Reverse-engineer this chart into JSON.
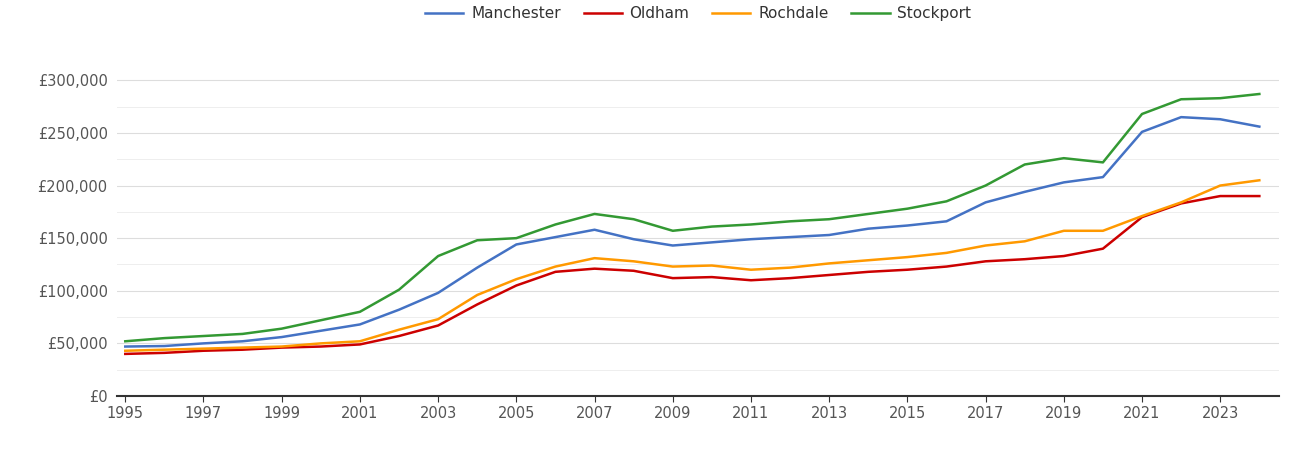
{
  "years": [
    1995,
    1996,
    1997,
    1998,
    1999,
    2000,
    2001,
    2002,
    2003,
    2004,
    2005,
    2006,
    2007,
    2008,
    2009,
    2010,
    2011,
    2012,
    2013,
    2014,
    2015,
    2016,
    2017,
    2018,
    2019,
    2020,
    2021,
    2022,
    2023,
    2024
  ],
  "manchester": [
    47000,
    47500,
    50000,
    52000,
    56000,
    62000,
    68000,
    82000,
    98000,
    122000,
    144000,
    151000,
    158000,
    149000,
    143000,
    146000,
    149000,
    151000,
    153000,
    159000,
    162000,
    166000,
    184000,
    194000,
    203000,
    208000,
    251000,
    265000,
    263000,
    256000
  ],
  "oldham": [
    40000,
    41000,
    43000,
    44000,
    46000,
    47000,
    49000,
    57000,
    67000,
    87000,
    105000,
    118000,
    121000,
    119000,
    112000,
    113000,
    110000,
    112000,
    115000,
    118000,
    120000,
    123000,
    128000,
    130000,
    133000,
    140000,
    170000,
    183000,
    190000,
    190000
  ],
  "rochdale": [
    43000,
    44000,
    45000,
    46000,
    47000,
    50000,
    52000,
    63000,
    73000,
    96000,
    111000,
    123000,
    131000,
    128000,
    123000,
    124000,
    120000,
    122000,
    126000,
    129000,
    132000,
    136000,
    143000,
    147000,
    157000,
    157000,
    171000,
    184000,
    200000,
    205000
  ],
  "stockport": [
    52000,
    55000,
    57000,
    59000,
    64000,
    72000,
    80000,
    101000,
    133000,
    148000,
    150000,
    163000,
    173000,
    168000,
    157000,
    161000,
    163000,
    166000,
    168000,
    173000,
    178000,
    185000,
    200000,
    220000,
    226000,
    222000,
    268000,
    282000,
    283000,
    287000
  ],
  "colors": {
    "manchester": "#4472C4",
    "oldham": "#CC0000",
    "rochdale": "#FF9900",
    "stockport": "#339933"
  },
  "ylim": [
    0,
    325000
  ],
  "yticks_major": [
    0,
    50000,
    100000,
    150000,
    200000,
    250000,
    300000
  ],
  "yticks_minor": [
    25000,
    75000,
    125000,
    175000,
    225000,
    275000
  ],
  "ytick_labels": [
    "£0",
    "£50,000",
    "£100,000",
    "£150,000",
    "£200,000",
    "£250,000",
    "£300,000"
  ],
  "xtick_labels": [
    "1995",
    "1997",
    "1999",
    "2001",
    "2003",
    "2005",
    "2007",
    "2009",
    "2011",
    "2013",
    "2015",
    "2017",
    "2019",
    "2021",
    "2023"
  ],
  "background_color": "#ffffff",
  "line_width": 1.8,
  "grid_color": "#dddddd",
  "grid_color_minor": "#eeeeee"
}
